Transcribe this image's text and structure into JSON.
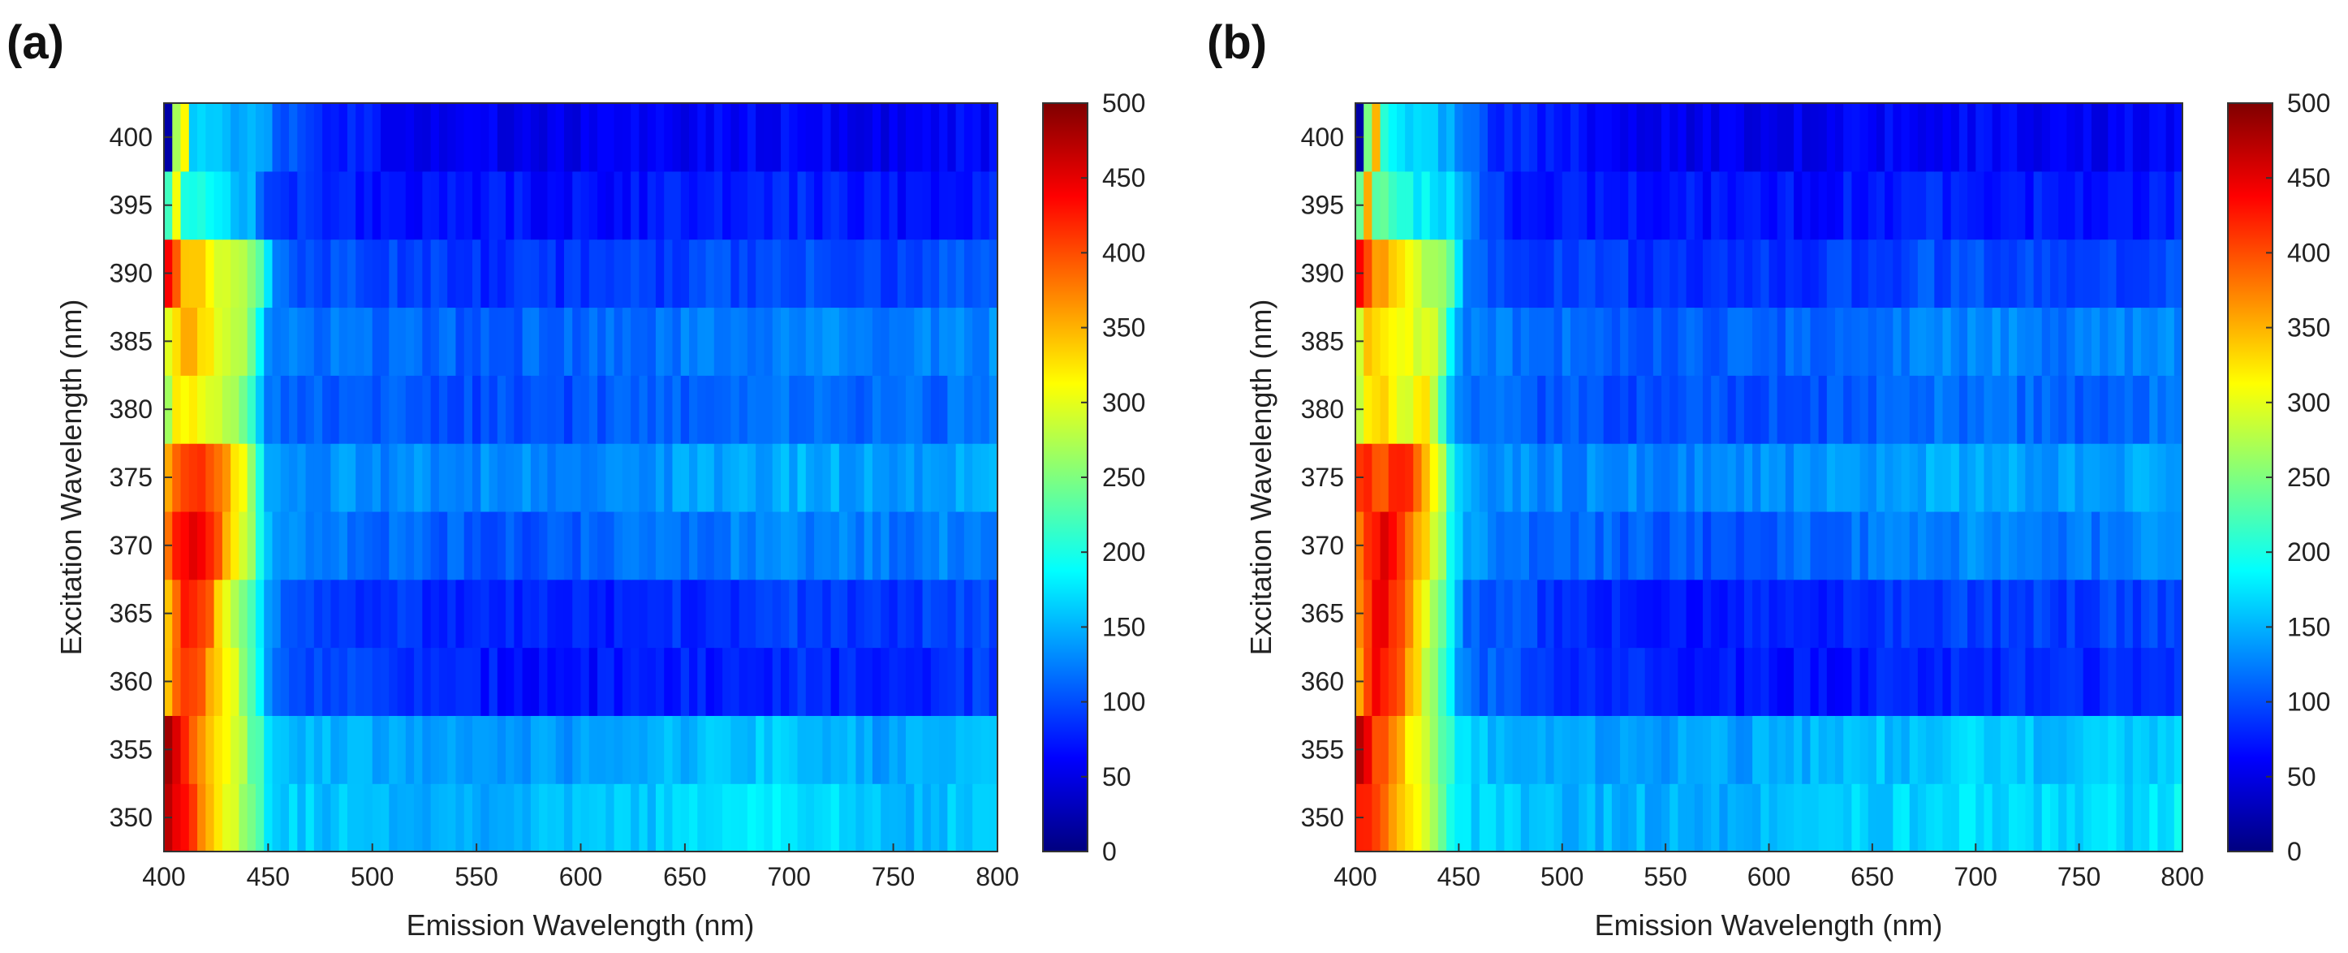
{
  "figure": {
    "panels": [
      "(a)",
      "(b)"
    ]
  },
  "colormap": [
    "#00007f",
    "#0000ff",
    "#007fff",
    "#00ffff",
    "#7fff7f",
    "#ffff00",
    "#ff7f00",
    "#ff0000",
    "#7f0000"
  ],
  "chart_data": [
    {
      "type": "heatmap",
      "panel": "(a)",
      "title": "",
      "xlabel": "Emission Wavelength (nm)",
      "ylabel": "Excitation Wavelength (nm)",
      "xlim": [
        400,
        800
      ],
      "ylim": [
        347.5,
        402.5
      ],
      "xticks": [
        400,
        450,
        500,
        550,
        600,
        650,
        700,
        750,
        800
      ],
      "yticks": [
        350,
        355,
        360,
        365,
        370,
        375,
        380,
        385,
        390,
        395,
        400
      ],
      "excitation": [
        350,
        355,
        360,
        365,
        370,
        375,
        380,
        385,
        390,
        395,
        400
      ],
      "emission_points": [
        400,
        404,
        408,
        412,
        416,
        420,
        424,
        428,
        432,
        436,
        440,
        444,
        448,
        452,
        460,
        475,
        500,
        525,
        550,
        575,
        600,
        625,
        650,
        675,
        700,
        725,
        750,
        775,
        800
      ],
      "colorbar": {
        "min": 0,
        "max": 500,
        "ticks": [
          0,
          50,
          100,
          150,
          200,
          250,
          300,
          350,
          400,
          450,
          500
        ]
      },
      "intensity_rows": [
        {
          "excitation": 350,
          "values": [
            490,
            480,
            430,
            420,
            400,
            360,
            330,
            320,
            300,
            290,
            260,
            240,
            200,
            175,
            165,
            160,
            155,
            150,
            150,
            150,
            155,
            160,
            165,
            175,
            185,
            165,
            150,
            160,
            170
          ]
        },
        {
          "excitation": 355,
          "values": [
            480,
            470,
            420,
            410,
            390,
            350,
            320,
            310,
            290,
            280,
            250,
            230,
            195,
            170,
            160,
            150,
            145,
            140,
            140,
            140,
            140,
            145,
            150,
            160,
            165,
            150,
            140,
            150,
            160
          ]
        },
        {
          "excitation": 360,
          "values": [
            310,
            370,
            400,
            420,
            400,
            380,
            350,
            320,
            300,
            280,
            240,
            200,
            150,
            120,
            110,
            100,
            90,
            80,
            75,
            70,
            70,
            70,
            75,
            80,
            85,
            80,
            80,
            85,
            90
          ]
        },
        {
          "excitation": 365,
          "values": [
            320,
            380,
            410,
            430,
            420,
            400,
            360,
            330,
            300,
            270,
            240,
            200,
            150,
            120,
            110,
            100,
            90,
            80,
            75,
            75,
            75,
            80,
            85,
            90,
            95,
            90,
            90,
            95,
            100
          ]
        },
        {
          "excitation": 370,
          "values": [
            350,
            400,
            430,
            450,
            440,
            420,
            400,
            370,
            340,
            310,
            280,
            230,
            170,
            140,
            130,
            120,
            115,
            110,
            105,
            105,
            110,
            115,
            120,
            125,
            130,
            125,
            120,
            125,
            130
          ]
        },
        {
          "excitation": 375,
          "values": [
            320,
            380,
            410,
            420,
            410,
            400,
            390,
            370,
            350,
            320,
            280,
            230,
            170,
            145,
            140,
            135,
            130,
            130,
            130,
            130,
            130,
            135,
            140,
            145,
            150,
            145,
            140,
            145,
            150
          ]
        },
        {
          "excitation": 380,
          "values": [
            260,
            300,
            320,
            330,
            320,
            310,
            300,
            290,
            280,
            270,
            240,
            190,
            140,
            120,
            115,
            110,
            105,
            100,
            100,
            100,
            100,
            105,
            110,
            115,
            120,
            115,
            110,
            115,
            120
          ]
        },
        {
          "excitation": 385,
          "values": [
            260,
            320,
            340,
            350,
            340,
            330,
            310,
            300,
            290,
            280,
            260,
            240,
            150,
            130,
            125,
            120,
            115,
            110,
            110,
            110,
            110,
            115,
            120,
            125,
            130,
            125,
            120,
            125,
            130
          ]
        },
        {
          "excitation": 390,
          "values": [
            480,
            400,
            360,
            340,
            330,
            320,
            300,
            290,
            280,
            270,
            260,
            250,
            240,
            120,
            110,
            100,
            95,
            90,
            85,
            85,
            85,
            90,
            95,
            100,
            105,
            100,
            95,
            100,
            105
          ]
        },
        {
          "excitation": 395,
          "values": [
            30,
            420,
            220,
            200,
            210,
            200,
            190,
            180,
            170,
            160,
            150,
            140,
            110,
            90,
            85,
            80,
            75,
            70,
            70,
            70,
            70,
            70,
            75,
            80,
            80,
            75,
            70,
            75,
            80
          ]
        },
        {
          "excitation": 400,
          "values": [
            20,
            40,
            480,
            170,
            180,
            170,
            165,
            160,
            155,
            150,
            145,
            140,
            140,
            120,
            100,
            80,
            70,
            60,
            55,
            55,
            55,
            55,
            60,
            65,
            65,
            60,
            55,
            60,
            65
          ]
        }
      ]
    },
    {
      "type": "heatmap",
      "panel": "(b)",
      "title": "",
      "xlabel": "Emission Wavelength (nm)",
      "ylabel": "Excitation Wavelength (nm)",
      "xlim": [
        400,
        800
      ],
      "ylim": [
        347.5,
        402.5
      ],
      "xticks": [
        400,
        450,
        500,
        550,
        600,
        650,
        700,
        750,
        800
      ],
      "yticks": [
        350,
        355,
        360,
        365,
        370,
        375,
        380,
        385,
        390,
        395,
        400
      ],
      "excitation": [
        350,
        355,
        360,
        365,
        370,
        375,
        380,
        385,
        390,
        395,
        400
      ],
      "emission_points": [
        400,
        404,
        408,
        412,
        416,
        420,
        424,
        428,
        432,
        436,
        440,
        444,
        448,
        452,
        460,
        475,
        500,
        525,
        550,
        575,
        600,
        625,
        650,
        675,
        700,
        725,
        750,
        775,
        800
      ],
      "colorbar": {
        "min": 0,
        "max": 500,
        "ticks": [
          0,
          50,
          100,
          150,
          200,
          250,
          300,
          350,
          400,
          450,
          500
        ]
      },
      "intensity_rows": [
        {
          "excitation": 350,
          "values": [
            440,
            430,
            420,
            400,
            380,
            360,
            340,
            320,
            300,
            280,
            260,
            220,
            200,
            180,
            165,
            160,
            155,
            150,
            150,
            150,
            155,
            160,
            165,
            170,
            175,
            170,
            165,
            170,
            185
          ]
        },
        {
          "excitation": 355,
          "values": [
            480,
            460,
            420,
            400,
            380,
            350,
            330,
            310,
            290,
            260,
            240,
            220,
            190,
            170,
            160,
            150,
            145,
            140,
            140,
            140,
            145,
            150,
            155,
            160,
            165,
            160,
            155,
            160,
            170
          ]
        },
        {
          "excitation": 360,
          "values": [
            320,
            400,
            420,
            440,
            420,
            400,
            370,
            340,
            300,
            270,
            240,
            210,
            170,
            120,
            110,
            100,
            90,
            80,
            75,
            70,
            70,
            70,
            75,
            80,
            85,
            80,
            80,
            85,
            90
          ]
        },
        {
          "excitation": 365,
          "values": [
            320,
            400,
            430,
            440,
            430,
            410,
            380,
            350,
            310,
            280,
            240,
            210,
            170,
            120,
            110,
            100,
            90,
            80,
            75,
            75,
            75,
            80,
            85,
            90,
            95,
            90,
            90,
            95,
            100
          ]
        },
        {
          "excitation": 370,
          "values": [
            350,
            410,
            430,
            450,
            440,
            420,
            400,
            380,
            350,
            320,
            280,
            230,
            180,
            140,
            130,
            120,
            115,
            110,
            105,
            105,
            110,
            115,
            120,
            125,
            130,
            125,
            120,
            125,
            130
          ]
        },
        {
          "excitation": 375,
          "values": [
            400,
            420,
            410,
            400,
            410,
            420,
            430,
            390,
            360,
            330,
            290,
            240,
            180,
            145,
            140,
            135,
            130,
            130,
            130,
            130,
            130,
            135,
            140,
            145,
            150,
            145,
            140,
            145,
            150
          ]
        },
        {
          "excitation": 380,
          "values": [
            260,
            300,
            320,
            330,
            320,
            310,
            300,
            290,
            340,
            300,
            250,
            190,
            140,
            120,
            115,
            110,
            105,
            100,
            100,
            100,
            100,
            105,
            110,
            115,
            120,
            115,
            110,
            115,
            120
          ]
        },
        {
          "excitation": 385,
          "values": [
            250,
            320,
            340,
            340,
            330,
            320,
            310,
            300,
            300,
            300,
            290,
            200,
            150,
            130,
            125,
            120,
            115,
            110,
            110,
            110,
            110,
            115,
            120,
            125,
            130,
            125,
            120,
            125,
            130
          ]
        },
        {
          "excitation": 390,
          "values": [
            470,
            420,
            380,
            360,
            350,
            340,
            320,
            300,
            280,
            270,
            260,
            250,
            240,
            120,
            110,
            100,
            95,
            90,
            85,
            85,
            85,
            90,
            95,
            100,
            105,
            100,
            95,
            100,
            105
          ]
        },
        {
          "excitation": 395,
          "values": [
            30,
            470,
            230,
            230,
            220,
            210,
            200,
            190,
            180,
            180,
            175,
            170,
            165,
            140,
            100,
            80,
            75,
            70,
            70,
            70,
            70,
            70,
            75,
            80,
            80,
            75,
            70,
            75,
            80
          ]
        },
        {
          "excitation": 400,
          "values": [
            20,
            30,
            480,
            200,
            190,
            180,
            175,
            170,
            165,
            160,
            150,
            145,
            140,
            130,
            100,
            80,
            70,
            60,
            55,
            55,
            55,
            55,
            60,
            65,
            65,
            60,
            55,
            60,
            65
          ]
        }
      ]
    }
  ]
}
